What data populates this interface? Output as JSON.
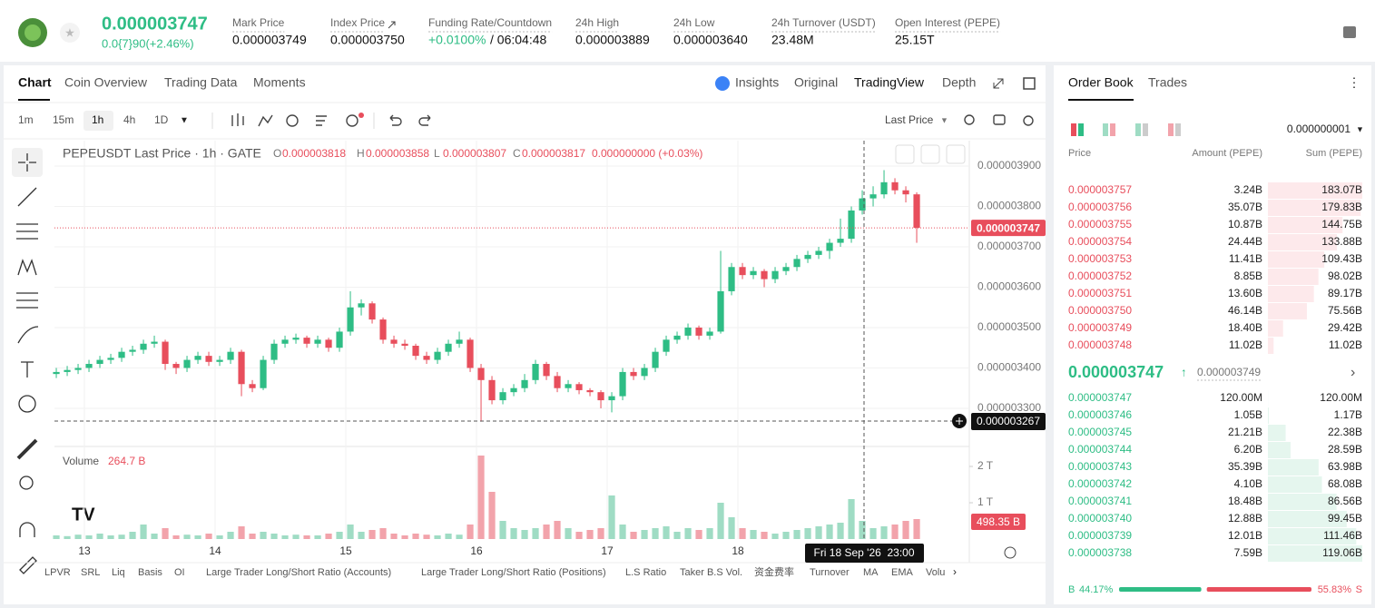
{
  "header": {
    "price": "0.000003747",
    "change": "0.0{7}90(+2.46%)",
    "stats": [
      {
        "label": "Mark Price",
        "value": "0.000003749"
      },
      {
        "label": "Index Price",
        "value": "0.000003750"
      },
      {
        "label": "Funding Rate/Countdown",
        "value": "+0.0100%",
        "extra": "/ 06:04:48"
      },
      {
        "label": "24h High",
        "value": "0.000003889"
      },
      {
        "label": "24h Low",
        "value": "0.000003640"
      },
      {
        "label": "24h Turnover (USDT)",
        "value": "23.48M"
      },
      {
        "label": "Open Interest (PEPE)",
        "value": "25.15T"
      }
    ]
  },
  "tabs": [
    "Chart",
    "Coin Overview",
    "Trading Data",
    "Moments"
  ],
  "views": [
    "Insights",
    "Original",
    "TradingView",
    "Depth"
  ],
  "intervals": [
    "1m",
    "15m",
    "1h",
    "4h",
    "1D"
  ],
  "price_source": "Last Price",
  "chart_data": {
    "type": "candlestick",
    "title": "PEPEUSDT Last Price · 1h · GATE",
    "ohlc_legend": [
      {
        "key": "O",
        "value": "0.000003818"
      },
      {
        "key": "H",
        "value": "0.000003858"
      },
      {
        "key": "L",
        "value": "0.000003807"
      },
      {
        "key": "C",
        "value": "0.000003817"
      }
    ],
    "legend_change": "0.000000000 (+0.03%)",
    "up_color": "#2ebd85",
    "down_color": "#e84e5c",
    "up_volume_color": "#9fdcc4",
    "down_volume_color": "#f2a3ab",
    "xlim": [
      -0.17,
      83.83
    ],
    "xticks": [
      {
        "value": 2.58,
        "label": "13"
      },
      {
        "value": 14.58,
        "label": "14"
      },
      {
        "value": 26.58,
        "label": "15"
      },
      {
        "value": 38.58,
        "label": "16"
      },
      {
        "value": 50.58,
        "label": "17"
      },
      {
        "value": 62.58,
        "label": "18"
      }
    ],
    "ylim": [
      3.21e-06,
      3.963e-06
    ],
    "yticks": [
      {
        "value": 3.9e-06,
        "label": "0.000003900"
      },
      {
        "value": 3.8e-06,
        "label": "0.000003800"
      },
      {
        "value": 3.7e-06,
        "label": "0.000003700"
      },
      {
        "value": 3.6e-06,
        "label": "0.000003600"
      },
      {
        "value": 3.5e-06,
        "label": "0.000003500"
      },
      {
        "value": 3.4e-06,
        "label": "0.000003400"
      },
      {
        "value": 3.3e-06,
        "label": "0.000003300"
      }
    ],
    "grid": true,
    "candles": [
      [
        3.385e-06,
        3.4e-06,
        3.375e-06,
        3.39e-06
      ],
      [
        3.39e-06,
        3.405e-06,
        3.38e-06,
        3.395e-06
      ],
      [
        3.395e-06,
        3.41e-06,
        3.385e-06,
        3.4e-06
      ],
      [
        3.4e-06,
        3.42e-06,
        3.39e-06,
        3.41e-06
      ],
      [
        3.41e-06,
        3.43e-06,
        3.4e-06,
        3.42e-06
      ],
      [
        3.42e-06,
        3.435e-06,
        3.41e-06,
        3.425e-06
      ],
      [
        3.425e-06,
        3.45e-06,
        3.415e-06,
        3.44e-06
      ],
      [
        3.44e-06,
        3.455e-06,
        3.43e-06,
        3.445e-06
      ],
      [
        3.445e-06,
        3.47e-06,
        3.435e-06,
        3.46e-06
      ],
      [
        3.46e-06,
        3.48e-06,
        3.45e-06,
        3.465e-06
      ],
      [
        3.465e-06,
        3.47e-06,
        3.395e-06,
        3.41e-06
      ],
      [
        3.41e-06,
        3.415e-06,
        3.385e-06,
        3.4e-06
      ],
      [
        3.4e-06,
        3.43e-06,
        3.39e-06,
        3.42e-06
      ],
      [
        3.42e-06,
        3.44e-06,
        3.41e-06,
        3.43e-06
      ],
      [
        3.43e-06,
        3.44e-06,
        3.405e-06,
        3.415e-06
      ],
      [
        3.415e-06,
        3.43e-06,
        3.405e-06,
        3.42e-06
      ],
      [
        3.42e-06,
        3.45e-06,
        3.41e-06,
        3.44e-06
      ],
      [
        3.44e-06,
        3.445e-06,
        3.33e-06,
        3.36e-06
      ],
      [
        3.36e-06,
        3.37e-06,
        3.34e-06,
        3.35e-06
      ],
      [
        3.35e-06,
        3.43e-06,
        3.345e-06,
        3.42e-06
      ],
      [
        3.42e-06,
        3.47e-06,
        3.41e-06,
        3.46e-06
      ],
      [
        3.46e-06,
        3.48e-06,
        3.45e-06,
        3.47e-06
      ],
      [
        3.47e-06,
        3.485e-06,
        3.46e-06,
        3.475e-06
      ],
      [
        3.475e-06,
        3.48e-06,
        3.45e-06,
        3.46e-06
      ],
      [
        3.46e-06,
        3.48e-06,
        3.45e-06,
        3.47e-06
      ],
      [
        3.47e-06,
        3.475e-06,
        3.44e-06,
        3.45e-06
      ],
      [
        3.45e-06,
        3.5e-06,
        3.44e-06,
        3.49e-06
      ],
      [
        3.49e-06,
        3.59e-06,
        3.48e-06,
        3.55e-06
      ],
      [
        3.55e-06,
        3.57e-06,
        3.53e-06,
        3.56e-06
      ],
      [
        3.56e-06,
        3.565e-06,
        3.51e-06,
        3.52e-06
      ],
      [
        3.52e-06,
        3.525e-06,
        3.46e-06,
        3.47e-06
      ],
      [
        3.47e-06,
        3.48e-06,
        3.45e-06,
        3.46e-06
      ],
      [
        3.46e-06,
        3.47e-06,
        3.445e-06,
        3.455e-06
      ],
      [
        3.455e-06,
        3.46e-06,
        3.42e-06,
        3.43e-06
      ],
      [
        3.43e-06,
        3.44e-06,
        3.41e-06,
        3.42e-06
      ],
      [
        3.42e-06,
        3.45e-06,
        3.41e-06,
        3.44e-06
      ],
      [
        3.44e-06,
        3.47e-06,
        3.43e-06,
        3.46e-06
      ],
      [
        3.46e-06,
        3.49e-06,
        3.45e-06,
        3.47e-06
      ],
      [
        3.47e-06,
        3.475e-06,
        3.39e-06,
        3.4e-06
      ],
      [
        3.4e-06,
        3.41e-06,
        3.267e-06,
        3.37e-06
      ],
      [
        3.37e-06,
        3.38e-06,
        3.31e-06,
        3.32e-06
      ],
      [
        3.32e-06,
        3.35e-06,
        3.31e-06,
        3.34e-06
      ],
      [
        3.34e-06,
        3.36e-06,
        3.33e-06,
        3.35e-06
      ],
      [
        3.35e-06,
        3.385e-06,
        3.34e-06,
        3.37e-06
      ],
      [
        3.37e-06,
        3.42e-06,
        3.36e-06,
        3.41e-06
      ],
      [
        3.41e-06,
        3.415e-06,
        3.37e-06,
        3.38e-06
      ],
      [
        3.38e-06,
        3.39e-06,
        3.34e-06,
        3.35e-06
      ],
      [
        3.35e-06,
        3.37e-06,
        3.34e-06,
        3.36e-06
      ],
      [
        3.36e-06,
        3.365e-06,
        3.335e-06,
        3.345e-06
      ],
      [
        3.345e-06,
        3.35e-06,
        3.33e-06,
        3.34e-06
      ],
      [
        3.34e-06,
        3.345e-06,
        3.3e-06,
        3.32e-06
      ],
      [
        3.32e-06,
        3.34e-06,
        3.29e-06,
        3.33e-06
      ],
      [
        3.33e-06,
        3.4e-06,
        3.32e-06,
        3.39e-06
      ],
      [
        3.39e-06,
        3.4e-06,
        3.37e-06,
        3.38e-06
      ],
      [
        3.38e-06,
        3.41e-06,
        3.37e-06,
        3.4e-06
      ],
      [
        3.4e-06,
        3.45e-06,
        3.39e-06,
        3.44e-06
      ],
      [
        3.44e-06,
        3.48e-06,
        3.43e-06,
        3.47e-06
      ],
      [
        3.47e-06,
        3.49e-06,
        3.46e-06,
        3.48e-06
      ],
      [
        3.48e-06,
        3.51e-06,
        3.47e-06,
        3.5e-06
      ],
      [
        3.5e-06,
        3.505e-06,
        3.47e-06,
        3.48e-06
      ],
      [
        3.48e-06,
        3.5e-06,
        3.47e-06,
        3.49e-06
      ],
      [
        3.49e-06,
        3.69e-06,
        3.485e-06,
        3.59e-06
      ],
      [
        3.59e-06,
        3.66e-06,
        3.58e-06,
        3.65e-06
      ],
      [
        3.65e-06,
        3.66e-06,
        3.62e-06,
        3.63e-06
      ],
      [
        3.63e-06,
        3.65e-06,
        3.62e-06,
        3.64e-06
      ],
      [
        3.64e-06,
        3.645e-06,
        3.6e-06,
        3.62e-06
      ],
      [
        3.62e-06,
        3.65e-06,
        3.61e-06,
        3.64e-06
      ],
      [
        3.64e-06,
        3.66e-06,
        3.63e-06,
        3.65e-06
      ],
      [
        3.65e-06,
        3.68e-06,
        3.64e-06,
        3.67e-06
      ],
      [
        3.67e-06,
        3.69e-06,
        3.66e-06,
        3.68e-06
      ],
      [
        3.68e-06,
        3.7e-06,
        3.67e-06,
        3.69e-06
      ],
      [
        3.69e-06,
        3.72e-06,
        3.67e-06,
        3.71e-06
      ],
      [
        3.71e-06,
        3.77e-06,
        3.7e-06,
        3.72e-06
      ],
      [
        3.72e-06,
        3.8e-06,
        3.71e-06,
        3.79e-06
      ],
      [
        3.79e-06,
        3.84e-06,
        3.78e-06,
        3.82e-06
      ],
      [
        3.82e-06,
        3.85e-06,
        3.8e-06,
        3.83e-06
      ],
      [
        3.83e-06,
        3.89e-06,
        3.82e-06,
        3.86e-06
      ],
      [
        3.86e-06,
        3.87e-06,
        3.83e-06,
        3.84e-06
      ],
      [
        3.84e-06,
        3.85e-06,
        3.81e-06,
        3.83e-06
      ],
      [
        3.83e-06,
        3.835e-06,
        3.71e-06,
        3.747e-06
      ]
    ],
    "volume_title": "Volume",
    "volume_value": "264.7 B",
    "volume_ylim": [
      0,
      2.5
    ],
    "volume_ticks": [
      {
        "value": 2,
        "label": "2 T"
      },
      {
        "value": 1,
        "label": "1 T"
      }
    ],
    "volumes": [
      0.1,
      0.08,
      0.12,
      0.1,
      0.15,
      0.1,
      0.12,
      0.2,
      0.4,
      0.15,
      0.3,
      0.1,
      0.12,
      0.1,
      0.15,
      0.1,
      0.2,
      0.35,
      0.15,
      0.2,
      0.15,
      0.1,
      0.12,
      0.1,
      0.1,
      0.15,
      0.2,
      0.4,
      0.2,
      0.25,
      0.3,
      0.15,
      0.1,
      0.15,
      0.12,
      0.1,
      0.15,
      0.12,
      0.4,
      2.3,
      1.3,
      0.5,
      0.3,
      0.25,
      0.3,
      0.4,
      0.5,
      0.3,
      0.2,
      0.25,
      0.3,
      1.2,
      0.4,
      0.2,
      0.25,
      0.3,
      0.35,
      0.2,
      0.3,
      0.25,
      0.3,
      1.0,
      0.6,
      0.3,
      0.25,
      0.2,
      0.15,
      0.2,
      0.25,
      0.3,
      0.35,
      0.4,
      0.45,
      1.1,
      0.5,
      0.3,
      0.35,
      0.4,
      0.5,
      0.55
    ],
    "last_price_label": "0.000003747",
    "crosshair_price": "0.000003267",
    "crosshair_volume": "498.35 B",
    "crosshair_time": "Fri 18 Sep '26  23:00"
  },
  "indicators": [
    "LPVR",
    "SRL",
    "Liq",
    "Basis",
    "OI",
    "Large Trader Long/Short Ratio (Accounts)",
    "Large Trader Long/Short Ratio (Positions)",
    "L.S Ratio",
    "Taker B.S Vol.",
    "资金费率",
    "Turnover",
    "MA",
    "EMA",
    "Volu"
  ],
  "order_book": {
    "tabs": [
      "Order Book",
      "Trades"
    ],
    "precision": "0.000000001",
    "headers": [
      "Price",
      "Amount (PEPE)",
      "Sum (PEPE)"
    ],
    "asks": [
      {
        "price": "0.000003757",
        "amount": "3.24B",
        "sum": "183.07B",
        "depth": 183.07
      },
      {
        "price": "0.000003756",
        "amount": "35.07B",
        "sum": "179.83B",
        "depth": 179.83
      },
      {
        "price": "0.000003755",
        "amount": "10.87B",
        "sum": "144.75B",
        "depth": 144.75
      },
      {
        "price": "0.000003754",
        "amount": "24.44B",
        "sum": "133.88B",
        "depth": 133.88
      },
      {
        "price": "0.000003753",
        "amount": "11.41B",
        "sum": "109.43B",
        "depth": 109.43
      },
      {
        "price": "0.000003752",
        "amount": "8.85B",
        "sum": "98.02B",
        "depth": 98.02
      },
      {
        "price": "0.000003751",
        "amount": "13.60B",
        "sum": "89.17B",
        "depth": 89.17
      },
      {
        "price": "0.000003750",
        "amount": "46.14B",
        "sum": "75.56B",
        "depth": 75.56
      },
      {
        "price": "0.000003749",
        "amount": "18.40B",
        "sum": "29.42B",
        "depth": 29.42
      },
      {
        "price": "0.000003748",
        "amount": "11.02B",
        "sum": "11.02B",
        "depth": 11.02
      }
    ],
    "last_price": "0.000003747",
    "mark_price": "0.000003749",
    "bids": [
      {
        "price": "0.000003747",
        "amount": "120.00M",
        "sum": "120.00M",
        "depth": 0.12
      },
      {
        "price": "0.000003746",
        "amount": "1.05B",
        "sum": "1.17B",
        "depth": 1.17
      },
      {
        "price": "0.000003745",
        "amount": "21.21B",
        "sum": "22.38B",
        "depth": 22.38
      },
      {
        "price": "0.000003744",
        "amount": "6.20B",
        "sum": "28.59B",
        "depth": 28.59
      },
      {
        "price": "0.000003743",
        "amount": "35.39B",
        "sum": "63.98B",
        "depth": 63.98
      },
      {
        "price": "0.000003742",
        "amount": "4.10B",
        "sum": "68.08B",
        "depth": 68.08
      },
      {
        "price": "0.000003741",
        "amount": "18.48B",
        "sum": "86.56B",
        "depth": 86.56
      },
      {
        "price": "0.000003740",
        "amount": "12.88B",
        "sum": "99.45B",
        "depth": 99.45
      },
      {
        "price": "0.000003739",
        "amount": "12.01B",
        "sum": "111.46B",
        "depth": 111.46
      },
      {
        "price": "0.000003738",
        "amount": "7.59B",
        "sum": "119.06B",
        "depth": 119.06
      }
    ],
    "ratio": {
      "buy_key": "B",
      "buy": 44.17,
      "buy_label": "44.17%",
      "sell_key": "S",
      "sell": 55.83,
      "sell_label": "55.83%"
    }
  }
}
